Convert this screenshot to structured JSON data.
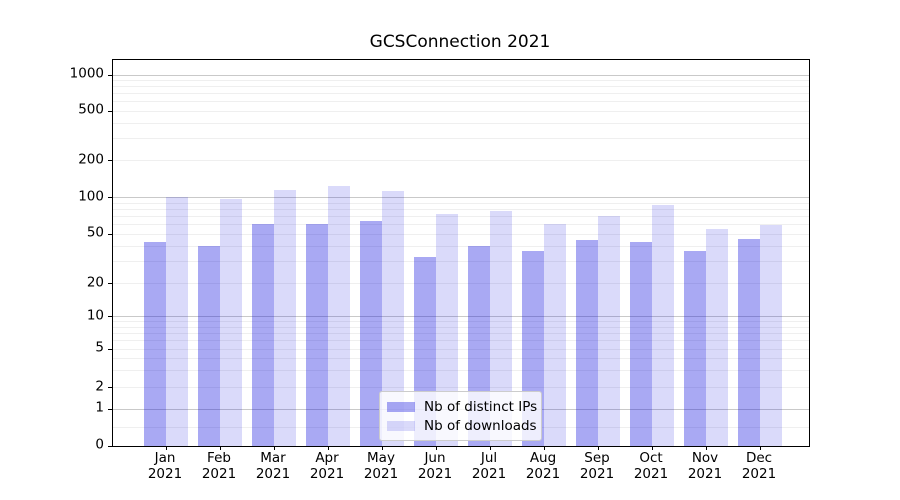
{
  "chart_data": {
    "type": "bar",
    "title": "GCSConnection 2021",
    "categories": [
      "Jan",
      "Feb",
      "Mar",
      "Apr",
      "May",
      "Jun",
      "Jul",
      "Aug",
      "Sep",
      "Oct",
      "Nov",
      "Dec"
    ],
    "category_year": "2021",
    "series": [
      {
        "name": "Nb of distinct IPs",
        "color": "rgba(10,10,220,0.35)",
        "color_hex_on_white": "#a6a5f2",
        "values": [
          43,
          40,
          61,
          61,
          64,
          33,
          40,
          37,
          45,
          43,
          37,
          46
        ]
      },
      {
        "name": "Nb of downloads",
        "color": "rgba(10,10,220,0.15)",
        "color_hex_on_white": "#d9d8f9",
        "values": [
          102,
          97,
          116,
          125,
          113,
          74,
          78,
          61,
          71,
          87,
          55,
          60
        ]
      }
    ],
    "xlabel": "",
    "ylabel": "",
    "yscale": "symlog",
    "y_ticks": [
      0,
      1,
      2,
      5,
      10,
      20,
      50,
      100,
      200,
      500,
      1000
    ],
    "ylim": [
      0,
      1400
    ],
    "grid": true,
    "major_grid_values": [
      1,
      10,
      100,
      1000
    ],
    "minor_grid_values": [
      0.5,
      2,
      3,
      4,
      5,
      6,
      7,
      8,
      9,
      20,
      30,
      40,
      50,
      60,
      70,
      80,
      90,
      200,
      300,
      400,
      500,
      600,
      700,
      800,
      900
    ],
    "legend_position": "lower center",
    "colors": {
      "major_grid": "#c9c9c9",
      "minor_grid": "#efefef",
      "axis": "#000000",
      "text": "#000000"
    }
  }
}
